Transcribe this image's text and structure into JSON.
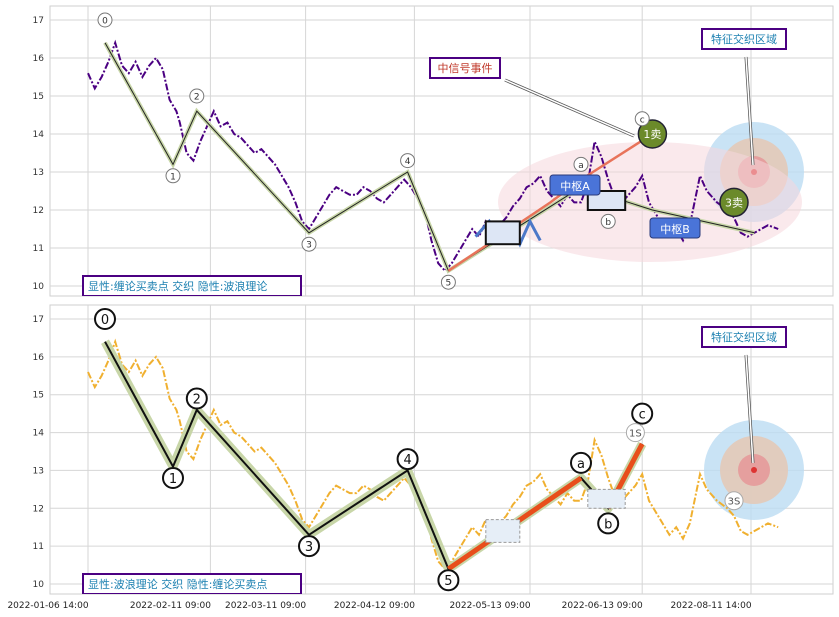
{
  "chart_data": [
    {
      "type": "line",
      "panel": "top",
      "ylim": [
        9.5,
        17.7
      ],
      "yticks": [
        "10",
        "11",
        "12",
        "13",
        "14",
        "15",
        "16",
        "17"
      ],
      "grid": true,
      "price_series": {
        "color": "#4b0082",
        "style": "dashdot",
        "x_days": [
          0,
          2,
          4,
          6,
          8,
          10,
          12,
          14,
          16,
          18,
          20,
          22,
          24,
          26,
          27,
          29,
          31,
          33,
          35,
          37,
          39,
          41,
          43,
          45,
          47,
          49,
          51,
          53,
          55,
          57,
          59,
          61,
          63,
          65,
          67,
          69,
          71,
          73,
          75,
          77,
          79,
          81,
          83,
          85,
          87,
          89,
          91,
          93,
          95,
          97,
          99,
          101,
          103,
          105,
          107,
          109,
          111,
          113,
          115,
          117,
          119,
          121,
          123,
          125,
          127,
          129,
          131,
          133,
          135,
          137,
          139,
          141,
          143,
          145,
          147,
          149,
          151,
          153,
          155,
          157,
          159,
          161,
          163,
          165,
          167,
          169,
          171,
          173,
          175,
          177,
          180,
          182,
          185,
          188,
          190,
          192,
          194,
          196,
          198,
          200,
          203
        ],
        "values": [
          15.6,
          15.2,
          15.5,
          15.9,
          16.4,
          15.8,
          15.6,
          15.9,
          15.5,
          15.8,
          16.0,
          15.7,
          14.9,
          14.6,
          14.3,
          13.5,
          13.3,
          13.8,
          14.2,
          14.6,
          14.2,
          14.3,
          14.0,
          13.9,
          13.7,
          13.5,
          13.6,
          13.4,
          13.2,
          12.9,
          12.6,
          12.2,
          11.7,
          11.5,
          11.8,
          12.1,
          12.4,
          12.6,
          12.5,
          12.4,
          12.4,
          12.6,
          12.5,
          12.3,
          12.2,
          12.4,
          12.6,
          12.8,
          12.6,
          12.3,
          12.0,
          11.2,
          10.6,
          10.4,
          10.6,
          10.9,
          11.2,
          11.5,
          11.3,
          11.7,
          11.4,
          11.6,
          11.8,
          12.1,
          12.3,
          12.6,
          12.7,
          12.9,
          12.5,
          12.3,
          12.1,
          12.4,
          12.2,
          12.2,
          12.7,
          13.8,
          13.4,
          12.8,
          12.3,
          12.2,
          12.4,
          12.6,
          12.9,
          12.2,
          11.9,
          11.6,
          11.3,
          11.5,
          11.2,
          11.6,
          12.9,
          12.5,
          12.2,
          12.0,
          11.8,
          11.4,
          11.3,
          11.4,
          11.5,
          11.6,
          11.5
        ]
      },
      "wave_line": {
        "x_days": [
          5,
          25,
          32,
          65,
          94,
          106,
          145,
          166,
          196
        ],
        "values": [
          16.4,
          13.2,
          14.6,
          11.4,
          13.0,
          10.4,
          12.6,
          12.0,
          11.4
        ]
      },
      "wave_labels": [
        {
          "label": "0",
          "x": 5,
          "y": 17.0
        },
        {
          "label": "1",
          "x": 25,
          "y": 12.9
        },
        {
          "label": "2",
          "x": 32,
          "y": 15.0
        },
        {
          "label": "3",
          "x": 65,
          "y": 11.1
        },
        {
          "label": "4",
          "x": 94,
          "y": 13.3
        },
        {
          "label": "5",
          "x": 106,
          "y": 10.1
        },
        {
          "label": "a",
          "x": 145,
          "y": 13.2
        },
        {
          "label": "b",
          "x": 153,
          "y": 11.7
        },
        {
          "label": "c",
          "x": 163,
          "y": 14.4
        }
      ],
      "strokes": [
        {
          "x": [
            106,
            136,
            145,
            166
          ],
          "values": [
            10.4,
            12.2,
            12.8,
            14.0
          ],
          "color": "#e8735a",
          "width": 2.5
        },
        {
          "x": [
            114,
            118,
            121,
            124,
            127,
            130,
            133
          ],
          "values": [
            11.3,
            11.7,
            11.2,
            11.6,
            11.1,
            11.7,
            11.2
          ],
          "color": "#4c78c8",
          "width": 3
        }
      ],
      "centers": [
        {
          "label": "中枢A",
          "x_range": [
            117,
            127
          ],
          "y_range": [
            11.1,
            11.7
          ]
        },
        {
          "label": "中枢B",
          "x_range": [
            147,
            158
          ],
          "y_range": [
            12.0,
            12.5
          ]
        }
      ],
      "bs_points": [
        {
          "label": "1卖",
          "x": 166,
          "y": 14.0
        },
        {
          "label": "3卖",
          "x": 190,
          "y": 12.2
        }
      ],
      "annotations": {
        "signal_event": "中信号事件",
        "feature_zone": "特征交织区域",
        "corner_label": "显性:缠论买卖点 交织 隐性:波浪理论"
      }
    },
    {
      "type": "line",
      "panel": "bottom",
      "ylim": [
        9.5,
        17.7
      ],
      "yticks": [
        "10",
        "11",
        "12",
        "13",
        "14",
        "15",
        "16",
        "17"
      ],
      "xticks": [
        "2022-01-06 14:00",
        "2022-02-11 09:00",
        "2022-03-11 09:00",
        "2022-04-12 09:00",
        "2022-05-13 09:00",
        "2022-06-13 09:00",
        "2022-08-11 14:00"
      ],
      "grid": true,
      "price_series_color": "#f0b030",
      "wave_line": {
        "x_days": [
          5,
          25,
          32,
          65,
          94,
          106,
          145,
          153,
          163
        ],
        "values": [
          16.4,
          13.1,
          14.6,
          11.3,
          13.0,
          10.4,
          12.8,
          12.0,
          13.7
        ]
      },
      "wave_labels": [
        {
          "label": "0",
          "x": 5,
          "y": 17.0
        },
        {
          "label": "1",
          "x": 25,
          "y": 12.8
        },
        {
          "label": "2",
          "x": 32,
          "y": 14.9
        },
        {
          "label": "3",
          "x": 65,
          "y": 11.0
        },
        {
          "label": "4",
          "x": 94,
          "y": 13.3
        },
        {
          "label": "5",
          "x": 106,
          "y": 10.1
        },
        {
          "label": "a",
          "x": 145,
          "y": 13.2
        },
        {
          "label": "b",
          "x": 153,
          "y": 11.6
        },
        {
          "label": "c",
          "x": 163,
          "y": 14.5
        }
      ],
      "bs_points": [
        {
          "label": "1S",
          "x": 161,
          "y": 14.0
        },
        {
          "label": "3S",
          "x": 190,
          "y": 12.2
        }
      ],
      "annotations": {
        "feature_zone": "特征交织区域",
        "corner_label": "显性:波浪理论 交织 隐性:缠论买卖点"
      }
    }
  ]
}
